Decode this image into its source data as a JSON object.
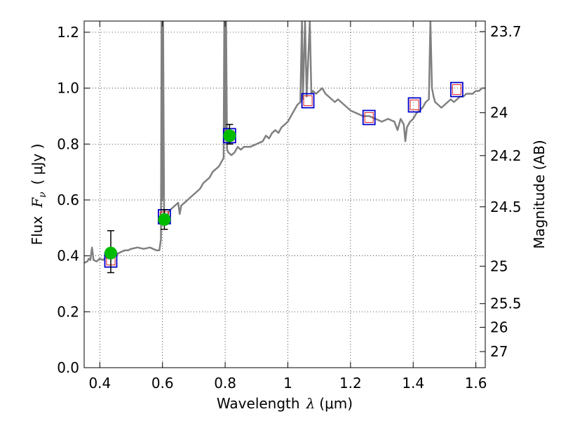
{
  "chart_data": {
    "type": "scatter",
    "xlabel": "Wavelength",
    "xlabel_symbol": "λ",
    "xlabel_unit": "(μm)",
    "ylabel": "Flux",
    "ylabel_symbol": "F",
    "ylabel_sub": "ν",
    "ylabel_unit": "( μJy )",
    "y2label": "Magnitude (AB)",
    "xlim": [
      0.35,
      1.63
    ],
    "ylim": [
      0.0,
      1.24
    ],
    "xticks": [
      0.4,
      0.6,
      0.8,
      1.0,
      1.2,
      1.4,
      1.6
    ],
    "xtick_labels": [
      "0.4",
      "0.6",
      "0.8",
      "1",
      "1.2",
      "1.4",
      "1.6"
    ],
    "yticks": [
      0.0,
      0.2,
      0.4,
      0.6,
      0.8,
      1.0,
      1.2
    ],
    "ytick_labels": [
      "0.0",
      "0.2",
      "0.4",
      "0.6",
      "0.8",
      "1.0",
      "1.2"
    ],
    "y2ticks": [
      {
        "label": "23.7",
        "flux": 1.2023
      },
      {
        "label": "24",
        "flux": 0.912
      },
      {
        "label": "24.2",
        "flux": 0.7586
      },
      {
        "label": "24.5",
        "flux": 0.5754
      },
      {
        "label": "25",
        "flux": 0.3631
      },
      {
        "label": "25.5",
        "flux": 0.2291
      },
      {
        "label": "26",
        "flux": 0.1445
      },
      {
        "label": "27",
        "flux": 0.0575
      }
    ],
    "grid": true,
    "grid_style": "dotted",
    "colors": {
      "sed": "#808080",
      "observed": "#00bb00",
      "model_box": "#0000cc",
      "model_inner": "#dd2222",
      "errorbar": "#000000"
    },
    "sed_spectrum": [
      [
        0.35,
        0.375
      ],
      [
        0.36,
        0.38
      ],
      [
        0.365,
        0.39
      ],
      [
        0.37,
        0.385
      ],
      [
        0.375,
        0.43
      ],
      [
        0.38,
        0.385
      ],
      [
        0.39,
        0.38
      ],
      [
        0.4,
        0.39
      ],
      [
        0.41,
        0.385
      ],
      [
        0.42,
        0.395
      ],
      [
        0.43,
        0.39
      ],
      [
        0.44,
        0.4
      ],
      [
        0.45,
        0.4
      ],
      [
        0.46,
        0.41
      ],
      [
        0.47,
        0.415
      ],
      [
        0.48,
        0.42
      ],
      [
        0.49,
        0.42
      ],
      [
        0.5,
        0.425
      ],
      [
        0.52,
        0.43
      ],
      [
        0.54,
        0.425
      ],
      [
        0.56,
        0.43
      ],
      [
        0.58,
        0.42
      ],
      [
        0.59,
        0.42
      ],
      [
        0.595,
        0.46
      ],
      [
        0.597,
        1.24
      ],
      [
        0.599,
        0.6
      ],
      [
        0.602,
        1.24
      ],
      [
        0.605,
        0.55
      ],
      [
        0.61,
        0.52
      ],
      [
        0.62,
        0.56
      ],
      [
        0.63,
        0.57
      ],
      [
        0.64,
        0.58
      ],
      [
        0.65,
        0.59
      ],
      [
        0.655,
        0.55
      ],
      [
        0.66,
        0.58
      ],
      [
        0.67,
        0.59
      ],
      [
        0.68,
        0.6
      ],
      [
        0.69,
        0.61
      ],
      [
        0.7,
        0.62
      ],
      [
        0.71,
        0.63
      ],
      [
        0.72,
        0.64
      ],
      [
        0.73,
        0.66
      ],
      [
        0.74,
        0.67
      ],
      [
        0.75,
        0.68
      ],
      [
        0.76,
        0.7
      ],
      [
        0.77,
        0.71
      ],
      [
        0.78,
        0.72
      ],
      [
        0.79,
        0.74
      ],
      [
        0.795,
        0.75
      ],
      [
        0.797,
        1.24
      ],
      [
        0.8,
        0.82
      ],
      [
        0.803,
        1.24
      ],
      [
        0.806,
        0.78
      ],
      [
        0.81,
        0.77
      ],
      [
        0.82,
        0.76
      ],
      [
        0.83,
        0.77
      ],
      [
        0.84,
        0.79
      ],
      [
        0.85,
        0.78
      ],
      [
        0.86,
        0.79
      ],
      [
        0.88,
        0.79
      ],
      [
        0.9,
        0.8
      ],
      [
        0.92,
        0.81
      ],
      [
        0.93,
        0.83
      ],
      [
        0.94,
        0.82
      ],
      [
        0.95,
        0.84
      ],
      [
        0.96,
        0.85
      ],
      [
        0.97,
        0.84
      ],
      [
        0.98,
        0.86
      ],
      [
        0.99,
        0.87
      ],
      [
        1.0,
        0.88
      ],
      [
        1.01,
        0.9
      ],
      [
        1.02,
        0.92
      ],
      [
        1.03,
        0.94
      ],
      [
        1.04,
        0.95
      ],
      [
        1.045,
        1.24
      ],
      [
        1.048,
        0.96
      ],
      [
        1.055,
        1.24
      ],
      [
        1.06,
        0.97
      ],
      [
        1.07,
        1.24
      ],
      [
        1.075,
        0.98
      ],
      [
        1.08,
        0.99
      ],
      [
        1.09,
        0.98
      ],
      [
        1.1,
        0.99
      ],
      [
        1.11,
        1.0
      ],
      [
        1.12,
        0.98
      ],
      [
        1.13,
        0.97
      ],
      [
        1.14,
        0.96
      ],
      [
        1.15,
        0.95
      ],
      [
        1.16,
        0.96
      ],
      [
        1.17,
        0.95
      ],
      [
        1.18,
        0.94
      ],
      [
        1.19,
        0.93
      ],
      [
        1.2,
        0.92
      ],
      [
        1.22,
        0.91
      ],
      [
        1.24,
        0.9
      ],
      [
        1.26,
        0.9
      ],
      [
        1.28,
        0.89
      ],
      [
        1.3,
        0.88
      ],
      [
        1.32,
        0.89
      ],
      [
        1.34,
        0.88
      ],
      [
        1.35,
        0.85
      ],
      [
        1.36,
        0.89
      ],
      [
        1.37,
        0.87
      ],
      [
        1.375,
        0.81
      ],
      [
        1.38,
        0.86
      ],
      [
        1.39,
        0.88
      ],
      [
        1.4,
        0.89
      ],
      [
        1.41,
        0.91
      ],
      [
        1.42,
        0.92
      ],
      [
        1.43,
        0.93
      ],
      [
        1.44,
        0.95
      ],
      [
        1.45,
        0.96
      ],
      [
        1.455,
        1.24
      ],
      [
        1.46,
        1.0
      ],
      [
        1.465,
        0.97
      ],
      [
        1.47,
        0.95
      ],
      [
        1.48,
        0.94
      ],
      [
        1.49,
        0.93
      ],
      [
        1.5,
        0.94
      ],
      [
        1.51,
        0.95
      ],
      [
        1.52,
        0.96
      ],
      [
        1.53,
        0.95
      ],
      [
        1.54,
        0.96
      ],
      [
        1.55,
        0.97
      ],
      [
        1.56,
        0.97
      ],
      [
        1.57,
        0.98
      ],
      [
        1.58,
        0.98
      ],
      [
        1.59,
        0.98
      ],
      [
        1.6,
        0.99
      ],
      [
        1.61,
        0.99
      ],
      [
        1.62,
        1.0
      ],
      [
        1.63,
        1.0
      ]
    ],
    "observed_points": [
      {
        "x": 0.435,
        "y": 0.41,
        "yerr_low": 0.34,
        "yerr_high": 0.49
      },
      {
        "x": 0.606,
        "y": 0.53,
        "yerr_low": 0.495,
        "yerr_high": 0.565
      },
      {
        "x": 0.814,
        "y": 0.83,
        "yerr_low": 0.8,
        "yerr_high": 0.87
      }
    ],
    "model_points": [
      {
        "x": 0.435,
        "y": 0.385
      },
      {
        "x": 0.606,
        "y": 0.54
      },
      {
        "x": 0.814,
        "y": 0.83
      },
      {
        "x": 1.064,
        "y": 0.955
      },
      {
        "x": 1.259,
        "y": 0.895
      },
      {
        "x": 1.404,
        "y": 0.94
      },
      {
        "x": 1.539,
        "y": 0.995
      }
    ]
  }
}
